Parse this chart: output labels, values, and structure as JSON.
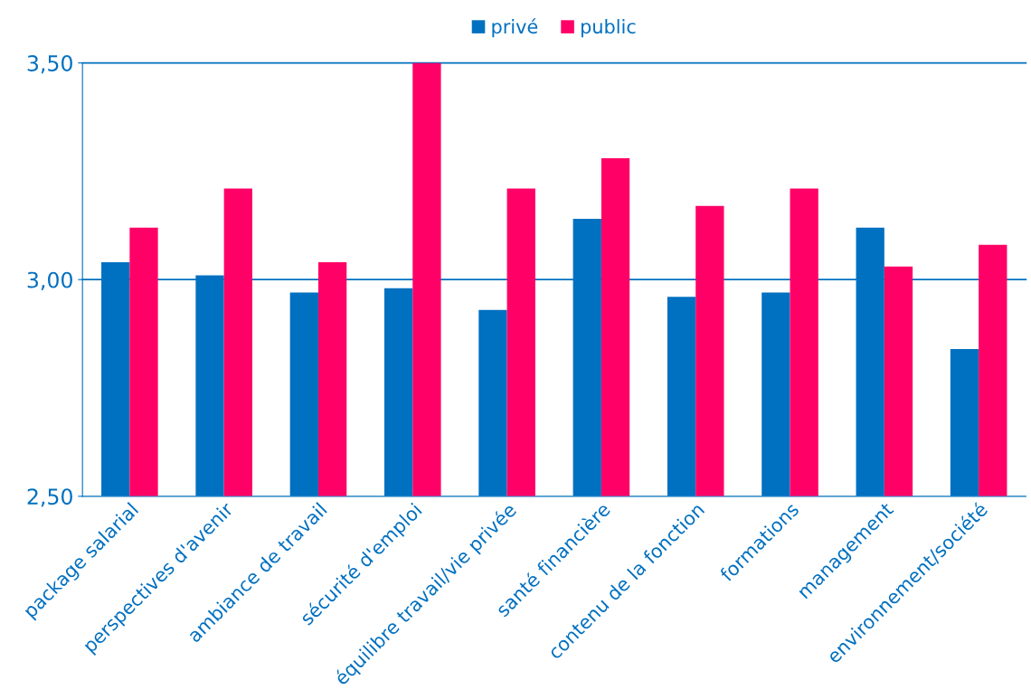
{
  "chart_data": {
    "type": "bar",
    "categories": [
      "package salarial",
      "perspectives d'avenir",
      "ambiance de travail",
      "sécurité d'emploi",
      "équilibre travail/vie privée",
      "santé financière",
      "contenu de la fonction",
      "formations",
      "management",
      "environnement/société"
    ],
    "series": [
      {
        "name": "privé",
        "color": "#0070c0",
        "values": [
          3.04,
          3.01,
          2.97,
          2.98,
          2.93,
          3.14,
          2.96,
          2.97,
          3.12,
          2.84
        ]
      },
      {
        "name": "public",
        "color": "#ff0066",
        "values": [
          3.12,
          3.21,
          3.04,
          3.5,
          3.21,
          3.28,
          3.17,
          3.21,
          3.03,
          3.08
        ]
      }
    ],
    "ylim": [
      2.5,
      3.5
    ],
    "yticks": [
      {
        "value": 2.5,
        "label": "2,50"
      },
      {
        "value": 3.0,
        "label": "3,00"
      },
      {
        "value": 3.5,
        "label": "3,50"
      }
    ],
    "ref_lines": [
      {
        "axis": "y",
        "value": 3.0,
        "color": "#0070c0"
      },
      {
        "axis": "y",
        "value": 3.5,
        "color": "#0070c0"
      }
    ],
    "legend": "top"
  }
}
